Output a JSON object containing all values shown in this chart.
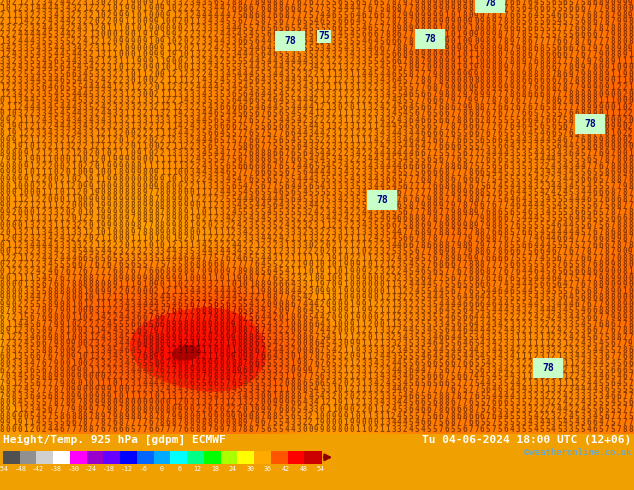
{
  "title_left": "Height/Temp. 925 hPa [gdpm] ECMWF",
  "title_right": "Tu 04-06-2024 18:00 UTC (12+06)",
  "credit": "©weatheronline.co.uk",
  "colorbar_ticks": [
    -54,
    -48,
    -42,
    -38,
    -30,
    -24,
    -18,
    -12,
    -6,
    0,
    6,
    12,
    18,
    24,
    30,
    36,
    42,
    48,
    54
  ],
  "bg_color": "#f0a000",
  "bottom_bar_color": "#000000",
  "colorbar_segments": [
    "#505050",
    "#909090",
    "#d0d0d0",
    "#ffffff",
    "#ff00ff",
    "#9900cc",
    "#6600ff",
    "#0000ff",
    "#0066ff",
    "#00aaff",
    "#00ffff",
    "#00ff88",
    "#00ff00",
    "#aaff00",
    "#ffff00",
    "#ffaa00",
    "#ff5500",
    "#ff0000",
    "#cc0000"
  ],
  "colorbar_arrow_color": "#880000",
  "text_color_left": "#ffffff",
  "text_color_right": "#ffffff",
  "credit_color": "#44aaff",
  "highlight_box_color": "#c8ffc8",
  "highlight_text_color": "#000088",
  "contour_label_value": 78
}
